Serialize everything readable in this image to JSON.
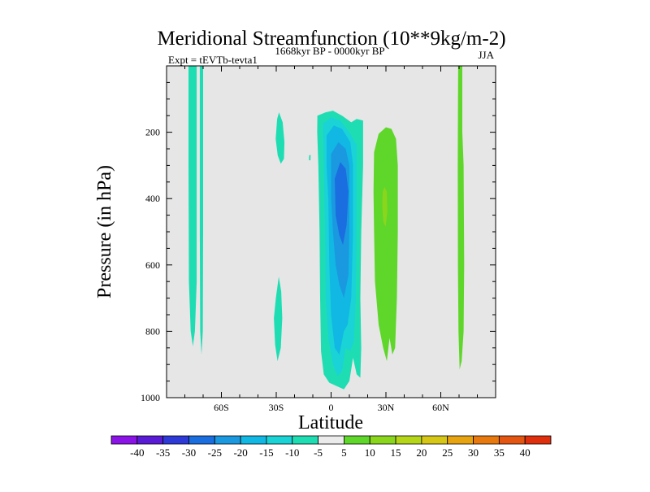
{
  "chart_data": {
    "type": "contour",
    "title": "Meridional Streamfunction (10**9kg/m-2)",
    "subtitle": "1668kyr BP - 0000kyr BP",
    "left_label": "Expt = tEVTb-tevta1",
    "right_label": "JJA",
    "xlabel": "Latitude",
    "ylabel": "Pressure (in hPa)",
    "xlim": [
      -90,
      90
    ],
    "ylim": [
      1000,
      0
    ],
    "x_ticks": [
      {
        "value": -60,
        "label": "60S"
      },
      {
        "value": -30,
        "label": "30S"
      },
      {
        "value": 0,
        "label": "0"
      },
      {
        "value": 30,
        "label": "30N"
      },
      {
        "value": 60,
        "label": "60N"
      }
    ],
    "y_ticks": [
      {
        "value": 200,
        "label": "200"
      },
      {
        "value": 400,
        "label": "400"
      },
      {
        "value": 600,
        "label": "600"
      },
      {
        "value": 800,
        "label": "800"
      },
      {
        "value": 1000,
        "label": "1000"
      }
    ],
    "missing_color": "#e6e6e6",
    "colorbar": {
      "levels": [
        -40,
        -35,
        -30,
        -25,
        -20,
        -15,
        -10,
        -5,
        5,
        10,
        15,
        20,
        25,
        30,
        35,
        40
      ],
      "colors": [
        "#8b13e8",
        "#5a1bd6",
        "#2d3ad8",
        "#1a6ee0",
        "#1a99e0",
        "#11b8e3",
        "#19d3d6",
        "#1fddb3",
        "#ebebeb",
        "#5fd62a",
        "#8ad61c",
        "#b5d618",
        "#d6c716",
        "#e8a410",
        "#e7790e",
        "#e35510",
        "#df2f0c"
      ]
    },
    "regions": [
      {
        "name": "negative-plume-1",
        "lat_range": [
          -78,
          -73
        ],
        "p_range": [
          0,
          840
        ],
        "band": "-10 to -5"
      },
      {
        "name": "negative-plume-2",
        "lat_range": [
          -72,
          -70
        ],
        "p_range": [
          0,
          870
        ],
        "band": "-10 to -5"
      },
      {
        "name": "negative-blob-a",
        "lat_range": [
          -30,
          -25
        ],
        "p_range": [
          150,
          290
        ],
        "band": "-10 to -5"
      },
      {
        "name": "negative-blob-b",
        "lat_range": [
          -31,
          -27
        ],
        "p_range": [
          640,
          880
        ],
        "band": "-10 to -5"
      },
      {
        "name": "negative-cell-outer",
        "lat_range": [
          -7,
          18
        ],
        "p_range": [
          140,
          970
        ],
        "band": "-10 to -5"
      },
      {
        "name": "negative-cell-core",
        "lat_range": [
          2,
          10
        ],
        "p_range": [
          290,
          520
        ],
        "band": "-30 to -25",
        "min_value": -27
      },
      {
        "name": "positive-cell-outer",
        "lat_range": [
          23,
          37
        ],
        "p_range": [
          190,
          890
        ],
        "band": "5 to 10"
      },
      {
        "name": "positive-cell-core",
        "lat_range": [
          28,
          31
        ],
        "p_range": [
          370,
          480
        ],
        "band": "10 to 15",
        "max_value": 12
      },
      {
        "name": "positive-plume",
        "lat_range": [
          69,
          73
        ],
        "p_range": [
          0,
          910
        ],
        "band": "5 to 10"
      }
    ]
  }
}
